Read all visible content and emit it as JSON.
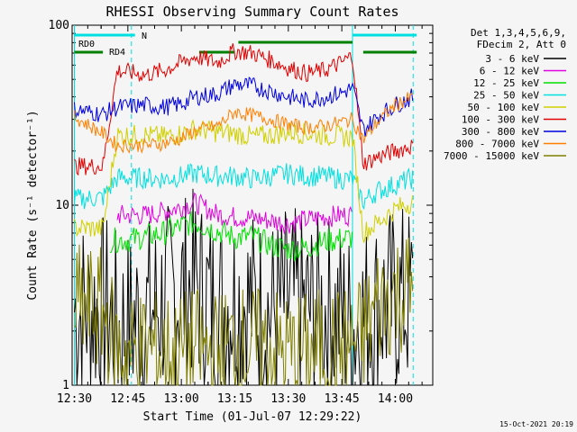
{
  "chart_data": {
    "type": "line",
    "title": "RHESSI Observing Summary Count Rates",
    "xlabel": "Start Time (01-Jul-07 12:29:22)",
    "ylabel": "Count Rate (s⁻¹ detector⁻¹)",
    "y_scale": "log",
    "xlim": [
      "12:29:22",
      "14:10:30"
    ],
    "ylim": [
      1,
      100
    ],
    "x_ticks": [
      "12:30",
      "12:45",
      "13:00",
      "13:15",
      "13:30",
      "13:45",
      "14:00"
    ],
    "y_ticks": [
      "1",
      "10",
      "100"
    ],
    "legend_header": [
      "Det 1,3,4,5,6,9,",
      "FDecim 2, Att 0"
    ],
    "legend_position": "right",
    "timestamp": "15-Oct-2021 20:19",
    "flags": [
      {
        "label": "N",
        "color": "#00e0e0",
        "segments": [
          [
            "12:30",
            "12:47"
          ],
          [
            "13:48",
            "14:06"
          ]
        ]
      },
      {
        "label": "RD0",
        "color": "#008000",
        "segments": [
          [
            "13:16",
            "13:48"
          ]
        ]
      },
      {
        "label": "RD4",
        "color": "#008000",
        "segments": [
          [
            "12:30",
            "12:38"
          ],
          [
            "13:05",
            "13:15"
          ],
          [
            "13:51",
            "14:06"
          ]
        ]
      }
    ],
    "markers": [
      {
        "time": "12:30",
        "color": "#00e0e0",
        "style": "solid"
      },
      {
        "time": "12:46",
        "color": "#00e0e0",
        "style": "dashed"
      },
      {
        "time": "13:48",
        "color": "#00e0e0",
        "style": "solid"
      },
      {
        "time": "14:05",
        "color": "#00e0e0",
        "style": "dashed"
      }
    ],
    "series": [
      {
        "name": "3 - 6 keV",
        "color": "#000000",
        "x": [
          "12:30",
          "12:40",
          "12:42",
          "12:50",
          "12:55",
          "13:00",
          "13:04",
          "13:10",
          "13:15",
          "13:20",
          "13:25",
          "13:30",
          "13:35",
          "13:40",
          "13:45",
          "13:48",
          "13:55",
          "14:00",
          "14:05"
        ],
        "y": [
          2.6,
          2.6,
          2.0,
          2.5,
          2.9,
          3.4,
          3.6,
          2.6,
          3.0,
          2.8,
          2.5,
          2.9,
          2.6,
          2.6,
          2.4,
          2.1,
          2.7,
          2.9,
          3.0
        ]
      },
      {
        "name": "6 - 12 keV",
        "color": "#e000e0",
        "x": [
          "12:42",
          "12:50",
          "12:55",
          "13:00",
          "13:04",
          "13:10",
          "13:15",
          "13:20",
          "13:25",
          "13:30",
          "13:35",
          "13:40",
          "13:45",
          "13:48"
        ],
        "y": [
          8.8,
          8.8,
          9.2,
          9.8,
          10.3,
          8.9,
          8.6,
          8.5,
          8.2,
          7.9,
          8.3,
          8.6,
          8.8,
          8.8
        ]
      },
      {
        "name": "12 - 25 keV",
        "color": "#00e000",
        "x": [
          "12:40",
          "12:45",
          "12:50",
          "12:55",
          "13:00",
          "13:04",
          "13:10",
          "13:15",
          "13:20",
          "13:25",
          "13:30",
          "13:35",
          "13:40",
          "13:45",
          "13:48"
        ],
        "y": [
          6.4,
          6.4,
          6.7,
          7.0,
          7.7,
          8.0,
          7.2,
          6.6,
          6.7,
          6.0,
          5.7,
          5.8,
          6.3,
          6.5,
          6.6
        ]
      },
      {
        "name": "25 - 50 keV",
        "color": "#00e0e0",
        "x": [
          "12:30",
          "12:38",
          "12:42",
          "12:50",
          "12:55",
          "13:00",
          "13:04",
          "13:10",
          "13:15",
          "13:20",
          "13:25",
          "13:30",
          "13:35",
          "13:40",
          "13:45",
          "13:48",
          "13:51",
          "13:55",
          "14:00",
          "14:05"
        ],
        "y": [
          10.8,
          11.0,
          14.2,
          14.2,
          14.0,
          14.5,
          15.0,
          14.5,
          14.5,
          14.0,
          14.5,
          15.0,
          14.5,
          14.5,
          14.0,
          14.0,
          10.5,
          12.0,
          13.0,
          14.2
        ]
      },
      {
        "name": "50 - 100 keV",
        "color": "#d0d000",
        "x": [
          "12:30",
          "12:38",
          "12:42",
          "12:50",
          "12:55",
          "13:00",
          "13:04",
          "13:10",
          "13:15",
          "13:20",
          "13:25",
          "13:30",
          "13:35",
          "13:40",
          "13:45",
          "13:48",
          "13:51",
          "13:55",
          "14:00",
          "14:05"
        ],
        "y": [
          7.5,
          7.4,
          24.5,
          24.5,
          24.0,
          25.0,
          26.5,
          25.5,
          25.0,
          24.0,
          24.5,
          25.5,
          25.0,
          24.5,
          24.0,
          24.0,
          7.0,
          8.0,
          9.5,
          10.5
        ]
      },
      {
        "name": "100 - 300 keV",
        "color": "#e00000",
        "x": [
          "12:30",
          "12:38",
          "12:42",
          "12:50",
          "12:55",
          "13:00",
          "13:04",
          "13:10",
          "13:15",
          "13:20",
          "13:25",
          "13:30",
          "13:35",
          "13:40",
          "13:45",
          "13:48",
          "13:51",
          "13:55",
          "14:00",
          "14:05"
        ],
        "y": [
          16.5,
          16.5,
          56.0,
          53.0,
          56.0,
          62.0,
          67.0,
          62.0,
          72.0,
          70.0,
          64.0,
          58.0,
          54.0,
          56.0,
          62.0,
          68.0,
          17.0,
          18.5,
          20.0,
          21.5
        ]
      },
      {
        "name": "300 - 800 keV",
        "color": "#0000e0",
        "x": [
          "12:30",
          "12:38",
          "12:42",
          "12:50",
          "12:55",
          "13:00",
          "13:04",
          "13:10",
          "13:15",
          "13:20",
          "13:25",
          "13:30",
          "13:35",
          "13:40",
          "13:45",
          "13:48",
          "13:51",
          "13:55",
          "14:00",
          "14:05"
        ],
        "y": [
          34.0,
          32.0,
          35.0,
          36.0,
          35.0,
          36.5,
          40.0,
          41.5,
          47.0,
          46.0,
          43.0,
          40.0,
          38.0,
          40.0,
          42.0,
          45.0,
          26.0,
          31.0,
          36.0,
          40.0
        ]
      },
      {
        "name": "800 - 7000 keV",
        "color": "#ff8000",
        "x": [
          "12:30",
          "12:38",
          "12:42",
          "12:50",
          "12:55",
          "13:00",
          "13:04",
          "13:10",
          "13:15",
          "13:20",
          "13:25",
          "13:30",
          "13:35",
          "13:40",
          "13:45",
          "13:48",
          "13:51",
          "13:55",
          "14:00",
          "14:05"
        ],
        "y": [
          31.0,
          25.0,
          21.5,
          21.5,
          22.0,
          23.5,
          26.0,
          27.5,
          33.0,
          31.5,
          30.0,
          28.0,
          27.0,
          27.5,
          29.0,
          30.0,
          23.0,
          29.0,
          36.0,
          40.0
        ]
      },
      {
        "name": "7000 - 15000 keV",
        "color": "#808000",
        "x": [
          "12:30",
          "12:38",
          "12:42",
          "12:45",
          "12:50",
          "12:55",
          "13:00",
          "13:04",
          "13:10",
          "13:15",
          "13:20",
          "13:25",
          "13:30",
          "13:35",
          "13:40",
          "13:45",
          "13:48",
          "13:51",
          "13:55",
          "14:00",
          "14:05"
        ],
        "y": [
          2.8,
          2.6,
          1.6,
          1.5,
          1.6,
          1.5,
          1.5,
          1.6,
          1.5,
          1.7,
          1.6,
          1.6,
          1.5,
          1.5,
          1.6,
          1.6,
          1.7,
          1.9,
          2.8,
          3.2,
          3.5
        ]
      }
    ]
  }
}
